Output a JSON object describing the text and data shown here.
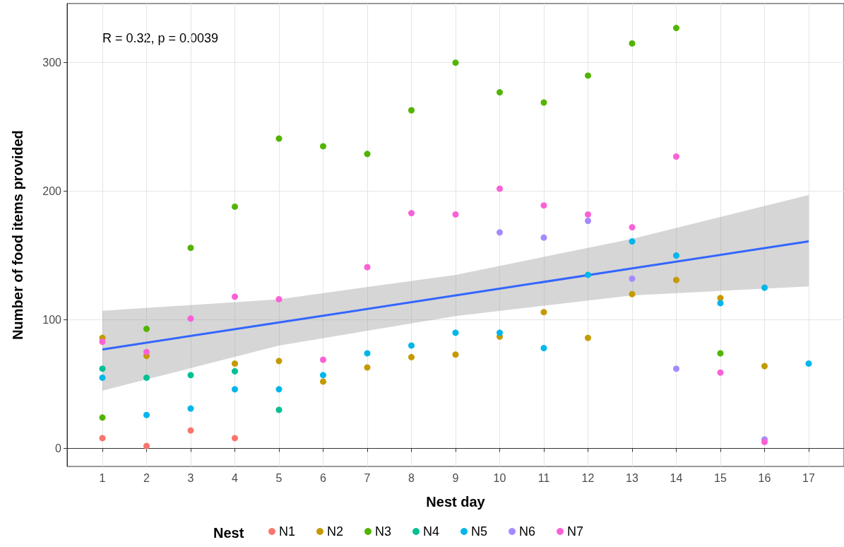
{
  "chart_data": {
    "type": "scatter",
    "xlabel": "Nest day",
    "ylabel": "Number of food items provided",
    "legend_title": "Nest",
    "annotations": [
      "R = 0.32, p = 0.0039"
    ],
    "xlim": [
      0.2,
      17.8
    ],
    "xticks": [
      1,
      2,
      3,
      4,
      5,
      6,
      7,
      8,
      9,
      10,
      11,
      12,
      13,
      14,
      15,
      16,
      17
    ],
    "ylim": [
      -14,
      346
    ],
    "yticks": [
      0,
      100,
      200,
      300
    ],
    "grid": true,
    "legend": "bottom",
    "marker": "circle",
    "series": [
      {
        "name": "N1",
        "color": "#f8766d",
        "x": [
          1,
          2,
          3,
          4
        ],
        "values": [
          8,
          2,
          14,
          8
        ]
      },
      {
        "name": "N2",
        "color": "#c49a00",
        "x": [
          1,
          2,
          4,
          5,
          6,
          7,
          8,
          9,
          10,
          11,
          12,
          13,
          14,
          15,
          16
        ],
        "values": [
          86,
          72,
          66,
          68,
          52,
          63,
          71,
          73,
          87,
          106,
          86,
          120,
          131,
          117,
          64
        ]
      },
      {
        "name": "N3",
        "color": "#53b400",
        "x": [
          1,
          2,
          3,
          4,
          5,
          6,
          7,
          8,
          9,
          10,
          11,
          12,
          13,
          14,
          15
        ],
        "values": [
          24,
          93,
          156,
          188,
          241,
          235,
          229,
          263,
          300,
          277,
          269,
          290,
          315,
          327,
          74
        ]
      },
      {
        "name": "N4",
        "color": "#00c094",
        "x": [
          1,
          2,
          3,
          4,
          5
        ],
        "values": [
          62,
          55,
          57,
          60,
          30
        ]
      },
      {
        "name": "N5",
        "color": "#00b6eb",
        "x": [
          1,
          2,
          3,
          4,
          5,
          6,
          7,
          8,
          9,
          10,
          11,
          12,
          13,
          14,
          15,
          16,
          17
        ],
        "values": [
          55,
          26,
          31,
          46,
          46,
          57,
          74,
          80,
          90,
          90,
          78,
          135,
          161,
          150,
          113,
          125,
          66
        ]
      },
      {
        "name": "N6",
        "color": "#a58aff",
        "x": [
          10,
          11,
          12,
          13,
          14,
          16
        ],
        "values": [
          168,
          164,
          177,
          132,
          62,
          7
        ]
      },
      {
        "name": "N7",
        "color": "#fb61d7",
        "x": [
          1,
          2,
          3,
          4,
          5,
          6,
          7,
          8,
          9,
          10,
          11,
          12,
          13,
          14,
          15,
          16
        ],
        "values": [
          83,
          75,
          101,
          118,
          116,
          69,
          141,
          183,
          182,
          202,
          189,
          182,
          172,
          227,
          59,
          5
        ]
      },
      {
        "type": "line",
        "color": "#3366ff",
        "x": [
          1,
          5,
          9,
          13,
          17
        ],
        "values": [
          77,
          98,
          119,
          140,
          161
        ],
        "lower": [
          45,
          80,
          103,
          119,
          126
        ],
        "upper": [
          107,
          116,
          135,
          163,
          197
        ],
        "marker": "none"
      }
    ]
  }
}
